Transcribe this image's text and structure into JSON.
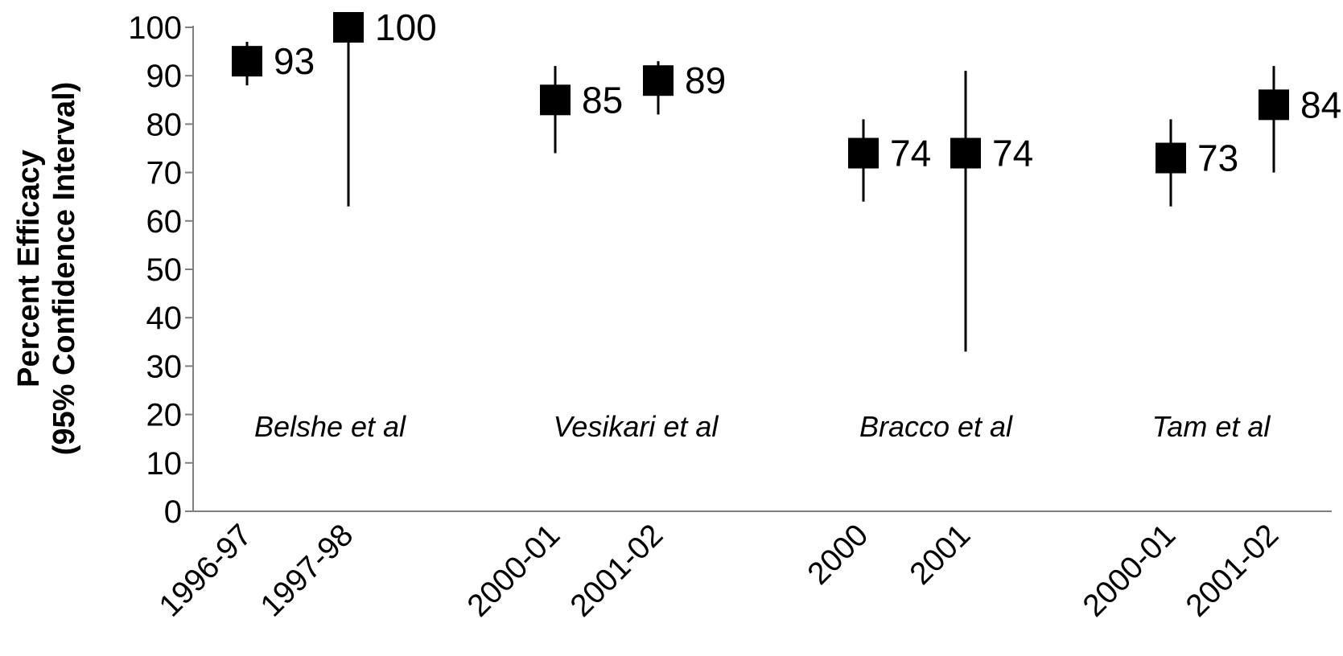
{
  "chart_data": {
    "type": "scatter",
    "title": "",
    "ylabel": [
      "Percent Efficacy",
      "(95% Confidence Interval)"
    ],
    "xlabel": "",
    "ylim": [
      0,
      100
    ],
    "yticks": [
      0,
      10,
      20,
      30,
      40,
      50,
      60,
      70,
      80,
      90,
      100
    ],
    "grid": false,
    "legend": "none",
    "marker": "square",
    "colors": {
      "marker": "#000000",
      "axis": "#7f7f7f",
      "text": "#000000"
    },
    "groups": [
      {
        "label": "Belshe et al",
        "points": [
          {
            "x": "1996-97",
            "value": 93,
            "ci_low": 88,
            "ci_high": 97,
            "label": "93"
          },
          {
            "x": "1997-98",
            "value": 100,
            "ci_low": 63,
            "ci_high": 100,
            "label": "100"
          }
        ]
      },
      {
        "label": "Vesikari et al",
        "points": [
          {
            "x": "2000-01",
            "value": 85,
            "ci_low": 74,
            "ci_high": 92,
            "label": "85"
          },
          {
            "x": "2001-02",
            "value": 89,
            "ci_low": 82,
            "ci_high": 93,
            "label": "89"
          }
        ]
      },
      {
        "label": "Bracco et al",
        "points": [
          {
            "x": "2000",
            "value": 74,
            "ci_low": 64,
            "ci_high": 81,
            "label": "74"
          },
          {
            "x": "2001",
            "value": 74,
            "ci_low": 33,
            "ci_high": 91,
            "label": "74"
          }
        ]
      },
      {
        "label": "Tam et al",
        "points": [
          {
            "x": "2000-01",
            "value": 73,
            "ci_low": 63,
            "ci_high": 81,
            "label": "73"
          },
          {
            "x": "2001-02",
            "value": 84,
            "ci_low": 70,
            "ci_high": 92,
            "label": "84"
          }
        ]
      }
    ]
  }
}
